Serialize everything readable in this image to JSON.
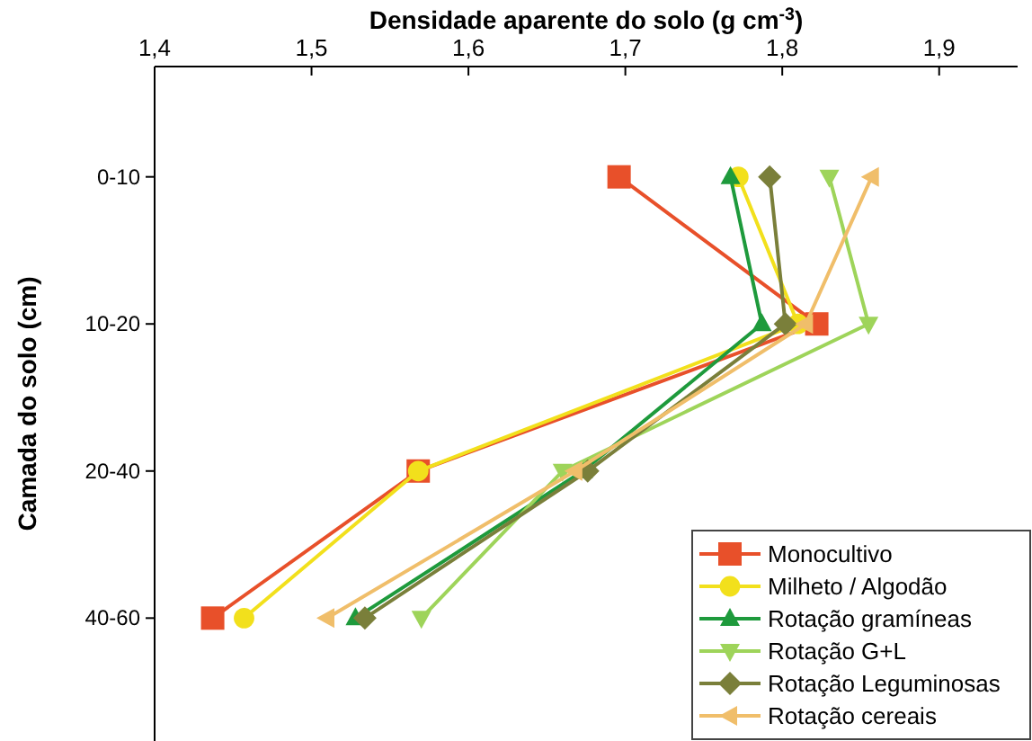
{
  "chart_data": {
    "type": "line",
    "orientation": "horizontal",
    "xlabel": "Densidade aparente do solo (g cm$^{-3}$)",
    "ylabel": "Camada do solo (cm)",
    "categories": [
      "0-10",
      "10-20",
      "20-40",
      "40-60"
    ],
    "xlim": [
      1.4,
      1.95
    ],
    "xticks": [
      {
        "value": 1.4,
        "label": "1,4"
      },
      {
        "value": 1.5,
        "label": "1,5"
      },
      {
        "value": 1.6,
        "label": "1,6"
      },
      {
        "value": 1.7,
        "label": "1,7"
      },
      {
        "value": 1.8,
        "label": "1,8"
      },
      {
        "value": 1.9,
        "label": "1,9"
      }
    ],
    "legend": "bottom right",
    "grid": false,
    "series": [
      {
        "name": "Monocultivo",
        "color": "#e8502a",
        "marker": "square",
        "values": [
          1.696,
          1.822,
          1.568,
          1.437
        ]
      },
      {
        "name": "Milheto / Algodão",
        "color": "#f2e01c",
        "marker": "circle",
        "values": [
          1.772,
          1.81,
          1.568,
          1.457
        ]
      },
      {
        "name": "Rotação gramíneas",
        "color": "#1e9a3c",
        "marker": "triangle",
        "values": [
          1.767,
          1.787,
          1.673,
          1.528
        ]
      },
      {
        "name": "Rotação G+L",
        "color": "#9ed45a",
        "marker": "triangle-down",
        "values": [
          1.83,
          1.855,
          1.66,
          1.57
        ]
      },
      {
        "name": "Rotação Leguminosas",
        "color": "#7a7f3a",
        "marker": "diamond",
        "values": [
          1.792,
          1.802,
          1.676,
          1.534
        ]
      },
      {
        "name": "Rotação cereais",
        "color": "#f0be6a",
        "marker": "triangle-left",
        "values": [
          1.857,
          1.815,
          1.668,
          1.51
        ]
      }
    ]
  }
}
